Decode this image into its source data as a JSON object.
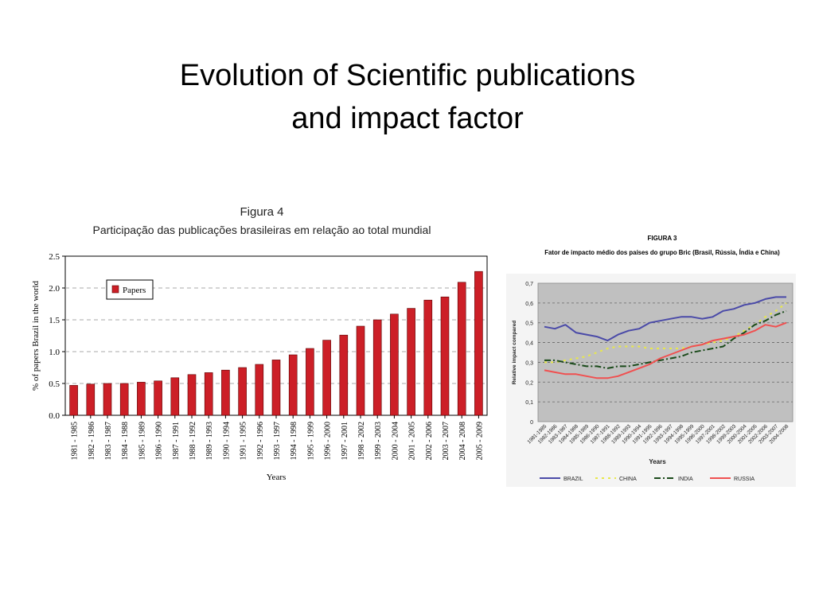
{
  "slide": {
    "title_line1": "Evolution of Scientific publications",
    "title_line2": "and impact factor"
  },
  "chart_data": [
    {
      "type": "bar",
      "title": "Figura 4",
      "subtitle": "Participação das publicações brasileiras em relação ao total mundial",
      "xlabel": "Years",
      "ylabel": "% of papers Brazil in the world",
      "ylim": [
        0,
        2.5
      ],
      "yticks": [
        "0.0",
        "0.5",
        "1.0",
        "1.5",
        "2.0",
        "2.5"
      ],
      "grid": true,
      "legend_position": "top-left",
      "categories": [
        "1981 - 1985",
        "1982 - 1986",
        "1983 - 1987",
        "1984 - 1988",
        "1985 - 1989",
        "1986 - 1990",
        "1987 - 1991",
        "1988 - 1992",
        "1989 - 1993",
        "1990 - 1994",
        "1991 - 1995",
        "1992 - 1996",
        "1993 - 1997",
        "1994 - 1998",
        "1995 - 1999",
        "1996 - 2000",
        "1997 - 2001",
        "1998 - 2002",
        "1999 - 2003",
        "2000 - 2004",
        "2001 - 2005",
        "2002 - 2006",
        "2003 - 2007",
        "2004 - 2008",
        "2005 - 2009"
      ],
      "series": [
        {
          "name": "Papers",
          "color": "#cc1f27",
          "values": [
            0.47,
            0.49,
            0.5,
            0.5,
            0.52,
            0.54,
            0.59,
            0.64,
            0.67,
            0.71,
            0.75,
            0.8,
            0.87,
            0.95,
            1.05,
            1.18,
            1.26,
            1.4,
            1.5,
            1.59,
            1.68,
            1.81,
            1.86,
            2.09,
            2.26
          ]
        }
      ]
    },
    {
      "type": "line",
      "title": "FIGURA 3",
      "subtitle": "Fator de impacto médio dos países do grupo Bric (Brasil, Rússia, Índia e China)",
      "xlabel": "Years",
      "ylabel": "Relative impact compared",
      "ylim": [
        0,
        0.7
      ],
      "yticks": [
        "0",
        "0,1",
        "0,2",
        "0,3",
        "0,4",
        "0,5",
        "0,6",
        "0,7"
      ],
      "grid": true,
      "legend_position": "bottom",
      "categories": [
        "1981-1985",
        "1982-1986",
        "1983-1987",
        "1984-1988",
        "1985-1989",
        "1986-1990",
        "1987-1991",
        "1988-1992",
        "1989-1993",
        "1990-1994",
        "1991-1995",
        "1992-1996",
        "1993-1997",
        "1994-1998",
        "1995-1999",
        "1996-2000",
        "1997-2001",
        "1998-2002",
        "1999-2003",
        "2000-2004",
        "2001-2005",
        "2002-2006",
        "2003-2007",
        "2004-2008"
      ],
      "series": [
        {
          "name": "BRAZIL",
          "color": "#4a4aa8",
          "style": "solid",
          "values": [
            0.48,
            0.47,
            0.49,
            0.45,
            0.44,
            0.43,
            0.41,
            0.44,
            0.46,
            0.47,
            0.5,
            0.51,
            0.52,
            0.53,
            0.53,
            0.52,
            0.53,
            0.56,
            0.57,
            0.59,
            0.6,
            0.62,
            0.63,
            0.63
          ]
        },
        {
          "name": "CHINA",
          "color": "#e8e84a",
          "style": "dotted",
          "values": [
            0.3,
            0.3,
            0.31,
            0.32,
            0.33,
            0.35,
            0.37,
            0.38,
            0.38,
            0.38,
            0.37,
            0.37,
            0.37,
            0.37,
            0.38,
            0.39,
            0.4,
            0.41,
            0.43,
            0.46,
            0.49,
            0.53,
            0.56,
            0.6
          ]
        },
        {
          "name": "INDIA",
          "color": "#1a4a1a",
          "style": "dashdot",
          "values": [
            0.31,
            0.31,
            0.3,
            0.29,
            0.28,
            0.28,
            0.27,
            0.28,
            0.28,
            0.29,
            0.3,
            0.31,
            0.32,
            0.33,
            0.35,
            0.36,
            0.37,
            0.38,
            0.42,
            0.45,
            0.49,
            0.51,
            0.54,
            0.56
          ]
        },
        {
          "name": "RUSSIA",
          "color": "#f05050",
          "style": "solid",
          "values": [
            0.26,
            0.25,
            0.24,
            0.24,
            0.23,
            0.22,
            0.22,
            0.23,
            0.25,
            0.27,
            0.29,
            0.32,
            0.34,
            0.36,
            0.38,
            0.39,
            0.41,
            0.42,
            0.43,
            0.44,
            0.46,
            0.49,
            0.48,
            0.5
          ]
        }
      ]
    }
  ]
}
